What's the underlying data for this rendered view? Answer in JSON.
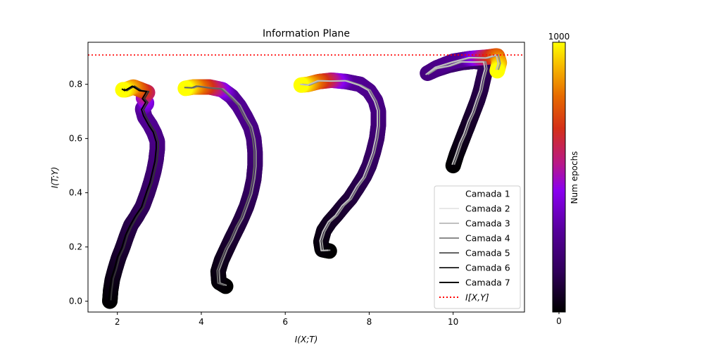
{
  "chart_data": {
    "type": "line",
    "title": "Information Plane",
    "xlabel": "I(X;T)",
    "ylabel": "I(T;Y)",
    "xlim": [
      1.3,
      11.7
    ],
    "ylim": [
      -0.04,
      0.955
    ],
    "x_ticks": [
      2,
      4,
      6,
      8,
      10
    ],
    "y_ticks": [
      0.0,
      0.2,
      0.4,
      0.6,
      0.8
    ],
    "hline": {
      "y": 0.908,
      "color": "#ff0000",
      "style": "dotted",
      "label": "I[X,Y]"
    },
    "colorbar": {
      "label": "Num epochs",
      "min": 0,
      "max": 1000,
      "min_label": "0",
      "max_label": "1000",
      "colormap": "gnuplot"
    },
    "legend": {
      "position": "lower-right"
    },
    "legend_entries": [
      {
        "label": "Camada 1",
        "color": "#ffffff"
      },
      {
        "label": "Camada 2",
        "color": "#e8e8e8"
      },
      {
        "label": "Camada 3",
        "color": "#c0c0c0"
      },
      {
        "label": "Camada 4",
        "color": "#8c8c8c"
      },
      {
        "label": "Camada 5",
        "color": "#636363"
      },
      {
        "label": "Camada 6",
        "color": "#333333"
      },
      {
        "label": "Camada 7",
        "color": "#000000"
      }
    ],
    "trajectories": [
      {
        "line_colors": [
          "#333333",
          "#000000"
        ],
        "points": [
          [
            1.82,
            0.0
          ],
          [
            1.84,
            0.04
          ],
          [
            1.88,
            0.08
          ],
          [
            1.95,
            0.12
          ],
          [
            2.03,
            0.16
          ],
          [
            2.13,
            0.2
          ],
          [
            2.22,
            0.24
          ],
          [
            2.32,
            0.28
          ],
          [
            2.45,
            0.31
          ],
          [
            2.6,
            0.35
          ],
          [
            2.72,
            0.4
          ],
          [
            2.8,
            0.44
          ],
          [
            2.87,
            0.48
          ],
          [
            2.92,
            0.52
          ],
          [
            2.95,
            0.56
          ],
          [
            2.95,
            0.59
          ],
          [
            2.88,
            0.62
          ],
          [
            2.78,
            0.65
          ],
          [
            2.65,
            0.68
          ],
          [
            2.6,
            0.71
          ],
          [
            2.7,
            0.73
          ],
          [
            2.62,
            0.75
          ],
          [
            2.72,
            0.77
          ],
          [
            2.55,
            0.78
          ],
          [
            2.38,
            0.79
          ],
          [
            2.2,
            0.78
          ],
          [
            2.13,
            0.78
          ]
        ]
      },
      {
        "line_colors": [
          "#8c8c8c",
          "#636363"
        ],
        "points": [
          [
            4.58,
            0.055
          ],
          [
            4.42,
            0.07
          ],
          [
            4.4,
            0.11
          ],
          [
            4.48,
            0.15
          ],
          [
            4.6,
            0.19
          ],
          [
            4.72,
            0.23
          ],
          [
            4.85,
            0.27
          ],
          [
            4.97,
            0.31
          ],
          [
            5.08,
            0.35
          ],
          [
            5.18,
            0.4
          ],
          [
            5.25,
            0.45
          ],
          [
            5.28,
            0.5
          ],
          [
            5.28,
            0.55
          ],
          [
            5.25,
            0.6
          ],
          [
            5.18,
            0.64
          ],
          [
            5.05,
            0.68
          ],
          [
            4.9,
            0.72
          ],
          [
            4.72,
            0.755
          ],
          [
            4.5,
            0.78
          ],
          [
            4.2,
            0.79
          ],
          [
            3.9,
            0.79
          ],
          [
            3.8,
            0.79
          ],
          [
            3.62,
            0.785
          ]
        ]
      },
      {
        "line_colors": [
          "#8c8c8c",
          "#c0c0c0"
        ],
        "points": [
          [
            7.05,
            0.185
          ],
          [
            6.88,
            0.19
          ],
          [
            6.85,
            0.22
          ],
          [
            6.92,
            0.26
          ],
          [
            7.05,
            0.29
          ],
          [
            7.22,
            0.32
          ],
          [
            7.38,
            0.35
          ],
          [
            7.55,
            0.38
          ],
          [
            7.72,
            0.42
          ],
          [
            7.88,
            0.46
          ],
          [
            8.0,
            0.5
          ],
          [
            8.1,
            0.55
          ],
          [
            8.18,
            0.6
          ],
          [
            8.22,
            0.65
          ],
          [
            8.22,
            0.7
          ],
          [
            8.15,
            0.74
          ],
          [
            8.0,
            0.775
          ],
          [
            7.78,
            0.8
          ],
          [
            7.45,
            0.81
          ],
          [
            7.1,
            0.815
          ],
          [
            6.8,
            0.81
          ],
          [
            6.55,
            0.8
          ],
          [
            6.38,
            0.797
          ]
        ]
      },
      {
        "line_colors": [
          "#8c8c8c",
          "#c0c0c0"
        ],
        "points": [
          [
            10.0,
            0.5
          ],
          [
            10.08,
            0.54
          ],
          [
            10.18,
            0.58
          ],
          [
            10.28,
            0.62
          ],
          [
            10.38,
            0.66
          ],
          [
            10.48,
            0.7
          ],
          [
            10.58,
            0.74
          ],
          [
            10.66,
            0.78
          ],
          [
            10.72,
            0.82
          ],
          [
            10.78,
            0.86
          ],
          [
            10.75,
            0.88
          ],
          [
            10.5,
            0.885
          ],
          [
            10.2,
            0.88
          ],
          [
            9.9,
            0.87
          ],
          [
            9.6,
            0.855
          ],
          [
            9.38,
            0.84
          ],
          [
            9.6,
            0.86
          ],
          [
            10.0,
            0.885
          ],
          [
            10.4,
            0.895
          ],
          [
            10.8,
            0.9
          ],
          [
            11.05,
            0.905
          ],
          [
            11.1,
            0.88
          ],
          [
            11.05,
            0.85
          ]
        ]
      }
    ]
  }
}
